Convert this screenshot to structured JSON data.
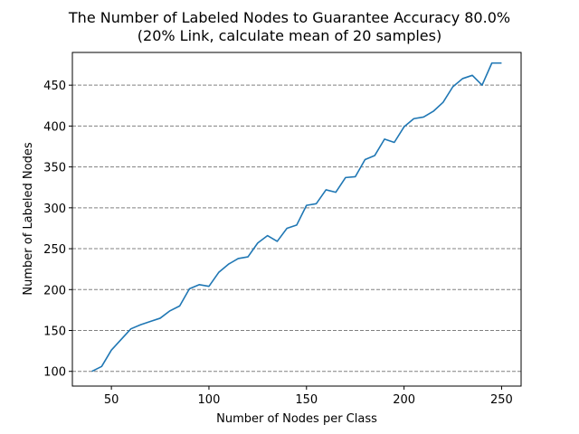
{
  "chart_data": {
    "type": "line",
    "title": "The Number of Labeled Nodes to Guarantee Accuracy 80.0%",
    "subtitle": "(20% Link, calculate mean of 20 samples)",
    "xlabel": "Number of Nodes per Class",
    "ylabel": "Number of Labeled Nodes",
    "xlim": [
      30,
      260
    ],
    "ylim": [
      82,
      490
    ],
    "xticks": [
      50,
      100,
      150,
      200,
      250
    ],
    "yticks": [
      100,
      150,
      200,
      250,
      300,
      350,
      400,
      450
    ],
    "grid": "y-dashed",
    "colors": {
      "line": "#1f77b4",
      "grid": "#808080"
    },
    "series": [
      {
        "x": [
          40,
          45,
          50,
          55,
          60,
          65,
          70,
          75,
          80,
          85,
          90,
          95,
          100,
          105,
          110,
          115,
          120,
          125,
          130,
          135,
          140,
          145,
          150,
          155,
          160,
          165,
          170,
          175,
          180,
          185,
          190,
          195,
          200,
          205,
          210,
          215,
          220,
          225,
          230,
          235,
          240,
          245,
          250
        ],
        "values": [
          100,
          106,
          126,
          139,
          152,
          157,
          161,
          165,
          174,
          180,
          201,
          206,
          204,
          221,
          231,
          238,
          240,
          257,
          266,
          259,
          275,
          279,
          303,
          305,
          322,
          319,
          337,
          338,
          359,
          364,
          384,
          380,
          399,
          409,
          411,
          418,
          429,
          448,
          458,
          462,
          450,
          477,
          477
        ]
      }
    ]
  }
}
